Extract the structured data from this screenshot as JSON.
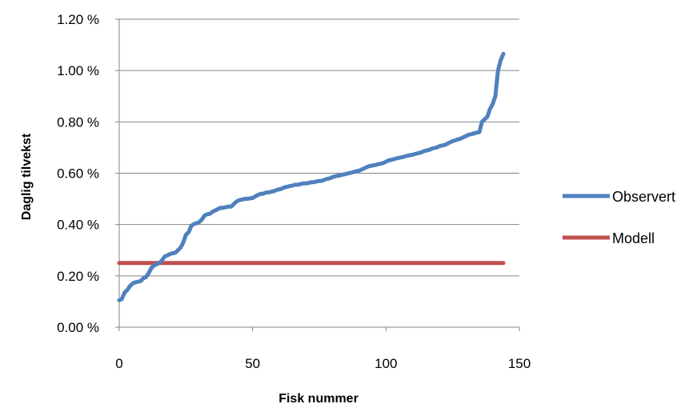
{
  "chart_data": {
    "type": "line",
    "title": "",
    "xlabel": "Fisk nummer",
    "ylabel": "Daglig tilvekst",
    "xlim": [
      0,
      150
    ],
    "ylim": [
      0.0,
      1.2
    ],
    "x_ticks": [
      0,
      50,
      100,
      150
    ],
    "y_ticks": [
      0.0,
      0.2,
      0.4,
      0.6,
      0.8,
      1.0,
      1.2
    ],
    "x_tick_labels": [
      "0",
      "50",
      "100",
      "150"
    ],
    "y_tick_labels": [
      "0.00 %",
      "0.20 %",
      "0.40 %",
      "0.60 %",
      "0.80 %",
      "1.00 %",
      "1.20 %"
    ],
    "grid": "horizontal",
    "legend": "right",
    "series": [
      {
        "name": "Observert",
        "color": "#4F81BD",
        "x": [
          0,
          1,
          2,
          3,
          4,
          5,
          6,
          7,
          8,
          9,
          10,
          11,
          12,
          13,
          14,
          15,
          16,
          17,
          18,
          19,
          20,
          21,
          22,
          23,
          24,
          25,
          26,
          27,
          28,
          29,
          30,
          31,
          32,
          33,
          34,
          35,
          36,
          37,
          38,
          39,
          40,
          41,
          42,
          43,
          44,
          45,
          46,
          47,
          48,
          49,
          50,
          51,
          52,
          53,
          54,
          55,
          56,
          57,
          58,
          59,
          60,
          61,
          62,
          63,
          64,
          65,
          66,
          67,
          68,
          69,
          70,
          71,
          72,
          73,
          74,
          75,
          76,
          77,
          78,
          79,
          80,
          81,
          82,
          83,
          84,
          85,
          86,
          87,
          88,
          89,
          90,
          91,
          92,
          93,
          94,
          95,
          96,
          97,
          98,
          99,
          100,
          101,
          102,
          103,
          104,
          105,
          106,
          107,
          108,
          109,
          110,
          111,
          112,
          113,
          114,
          115,
          116,
          117,
          118,
          119,
          120,
          121,
          122,
          123,
          124,
          125,
          126,
          127,
          128,
          129,
          130,
          131,
          132,
          133,
          134,
          135,
          136,
          137,
          138,
          139,
          140,
          141,
          142,
          143,
          144
        ],
        "values": [
          0.105,
          0.11,
          0.135,
          0.145,
          0.16,
          0.17,
          0.175,
          0.177,
          0.18,
          0.19,
          0.195,
          0.21,
          0.23,
          0.24,
          0.245,
          0.25,
          0.26,
          0.275,
          0.28,
          0.285,
          0.288,
          0.29,
          0.3,
          0.31,
          0.33,
          0.36,
          0.37,
          0.395,
          0.402,
          0.405,
          0.41,
          0.42,
          0.435,
          0.44,
          0.442,
          0.45,
          0.455,
          0.46,
          0.465,
          0.465,
          0.468,
          0.47,
          0.47,
          0.48,
          0.49,
          0.495,
          0.497,
          0.5,
          0.5,
          0.502,
          0.503,
          0.51,
          0.515,
          0.52,
          0.52,
          0.525,
          0.525,
          0.528,
          0.53,
          0.535,
          0.537,
          0.54,
          0.545,
          0.547,
          0.55,
          0.552,
          0.555,
          0.555,
          0.558,
          0.56,
          0.56,
          0.562,
          0.565,
          0.565,
          0.568,
          0.57,
          0.57,
          0.575,
          0.578,
          0.58,
          0.585,
          0.588,
          0.59,
          0.592,
          0.595,
          0.597,
          0.6,
          0.602,
          0.605,
          0.608,
          0.61,
          0.615,
          0.62,
          0.625,
          0.628,
          0.63,
          0.632,
          0.635,
          0.637,
          0.64,
          0.645,
          0.65,
          0.652,
          0.655,
          0.658,
          0.66,
          0.662,
          0.665,
          0.668,
          0.67,
          0.672,
          0.675,
          0.678,
          0.68,
          0.685,
          0.688,
          0.69,
          0.695,
          0.698,
          0.7,
          0.705,
          0.708,
          0.71,
          0.715,
          0.72,
          0.725,
          0.728,
          0.732,
          0.735,
          0.74,
          0.745,
          0.75,
          0.752,
          0.755,
          0.758,
          0.76,
          0.8,
          0.81,
          0.82,
          0.85,
          0.87,
          0.9,
          1.0,
          1.04,
          1.065
        ]
      },
      {
        "name": "Modell",
        "color": "#C0504D",
        "x": [
          0,
          144
        ],
        "values": [
          0.25,
          0.25
        ]
      }
    ]
  }
}
